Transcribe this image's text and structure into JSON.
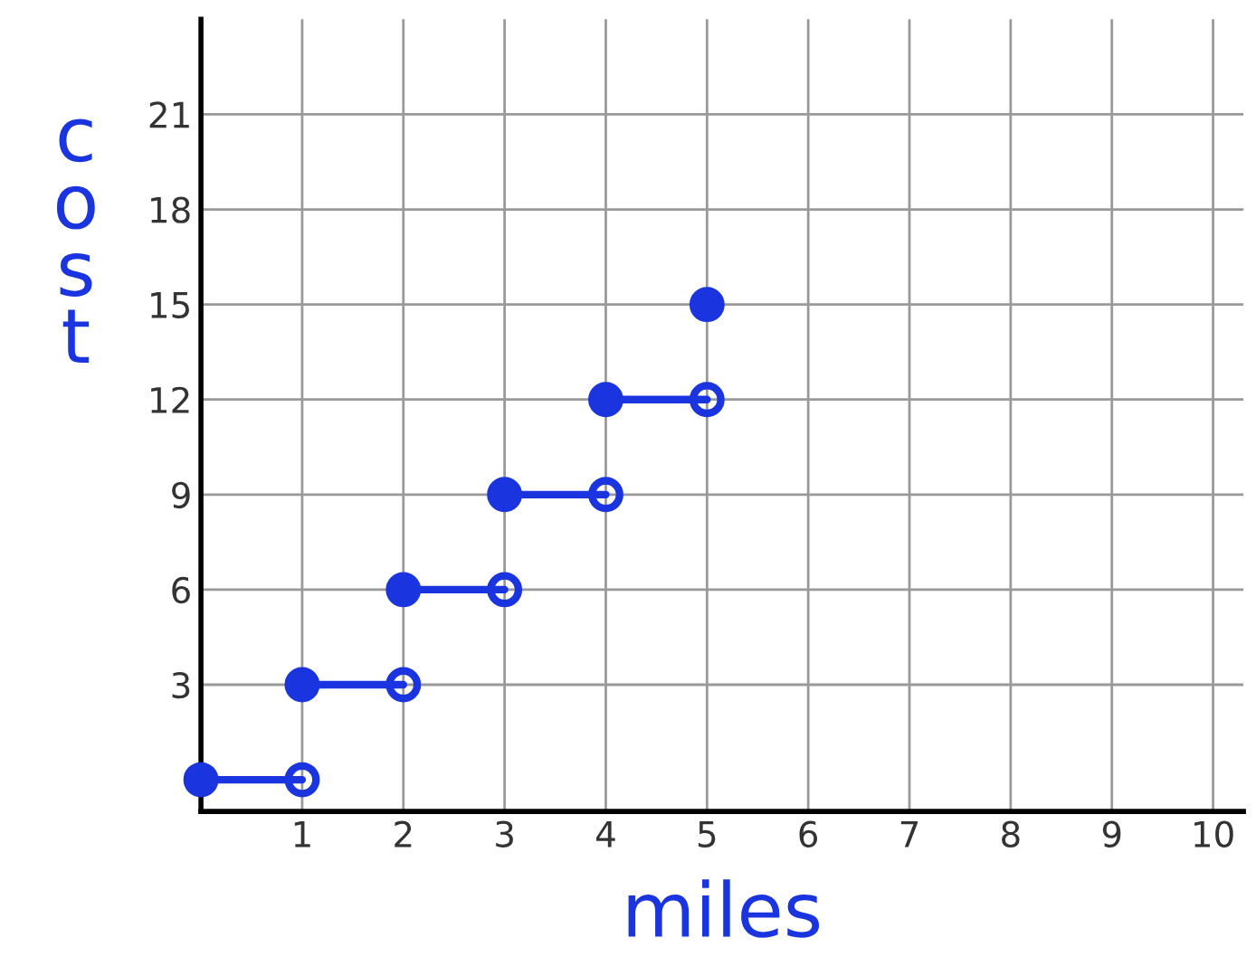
{
  "chart_data": {
    "type": "scatter",
    "xlabel": "miles",
    "ylabel": "cost",
    "series": [
      {
        "type": "line",
        "color": "#1a35e0",
        "marker": "none",
        "x": [
          0,
          1
        ],
        "values": [
          0,
          0
        ]
      },
      {
        "type": "line",
        "color": "#1a35e0",
        "marker": "none",
        "x": [
          1,
          2
        ],
        "values": [
          3,
          3
        ]
      },
      {
        "type": "line",
        "color": "#1a35e0",
        "marker": "none",
        "x": [
          2,
          3
        ],
        "values": [
          6,
          6
        ]
      },
      {
        "type": "line",
        "color": "#1a35e0",
        "marker": "none",
        "x": [
          3,
          4
        ],
        "values": [
          9,
          9
        ]
      },
      {
        "type": "line",
        "color": "#1a35e0",
        "marker": "none",
        "x": [
          4,
          5
        ],
        "values": [
          12,
          12
        ]
      },
      {
        "color": "#1a35e0",
        "x": [
          0,
          1,
          2,
          3,
          4,
          5
        ],
        "values": [
          0,
          3,
          6,
          9,
          12,
          15
        ]
      },
      {
        "color": "#1a35e0",
        "x": [
          1,
          2,
          3,
          4,
          5
        ],
        "values": [
          0,
          3,
          6,
          9,
          12
        ]
      }
    ],
    "xlim": [
      0,
      10.3
    ],
    "ylim": [
      -1,
      24
    ],
    "xticks": [
      1,
      2,
      3,
      4,
      5,
      6,
      7,
      8,
      9,
      10
    ],
    "yticks": [
      3,
      6,
      9,
      12,
      15,
      18,
      21
    ],
    "grid": true,
    "marker": "circle",
    "line_style": "solid"
  }
}
